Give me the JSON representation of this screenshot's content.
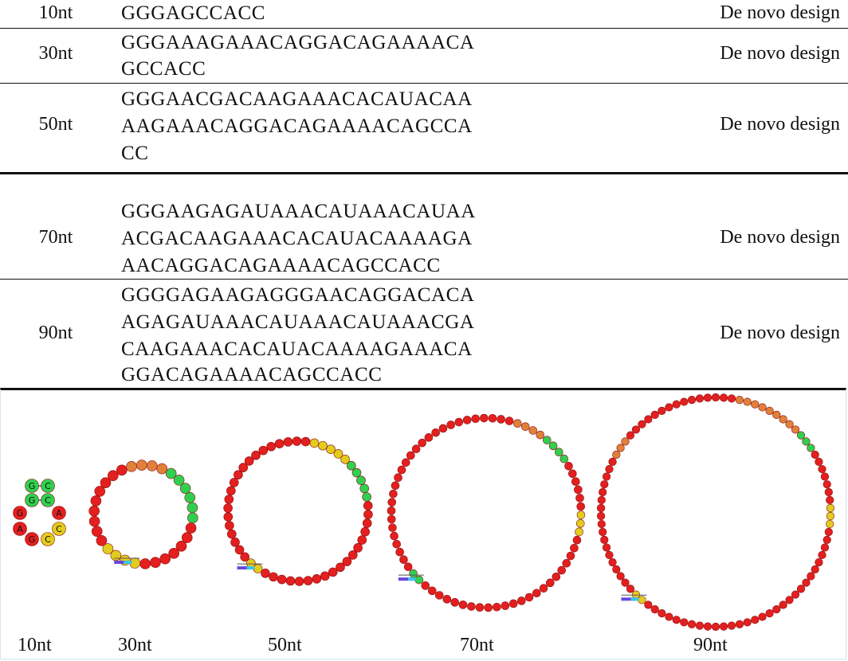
{
  "table": {
    "rows": [
      {
        "length": "10nt",
        "sequence_lines": [
          "GGGAGCCACC"
        ],
        "source": "De novo design"
      },
      {
        "length": "30nt",
        "sequence_lines": [
          "GGGAAAGAAACAGGACAGAAAACA",
          "GCCACC"
        ],
        "source": "De novo design"
      },
      {
        "length": "50nt",
        "sequence_lines": [
          "GGGAACGACAAGAAACACAUACAA",
          "AAGAAACAGGACAGAAAACAGCCA",
          "CC"
        ],
        "source": "De novo design"
      },
      {
        "length": "70nt",
        "sequence_lines": [
          "GGGAAGAGAUAAACAUAAACAUAA",
          "ACGACAAGAAACACAUACAAAAGA",
          "AACAGGACAGAAAACAGCCACC"
        ],
        "source": "De novo design"
      },
      {
        "length": "90nt",
        "sequence_lines": [
          "GGGGAGAAGAGGGAACAGGACACA",
          "AGAGAUAAACAUAAACAUAAACGA",
          "CAAGAAACACAUACAAAAGAAACA",
          "GGACAGAAAACAGCCACC"
        ],
        "source": "De novo design"
      }
    ]
  },
  "figure": {
    "captions": [
      "10nt",
      "30nt",
      "50nt",
      "70nt",
      "90nt"
    ],
    "hairpin_10nt": {
      "stem_pairs": [
        [
          "G",
          "C"
        ],
        [
          "G",
          "C"
        ]
      ],
      "loop_left": [
        "G",
        "A"
      ],
      "loop_right": [
        "A",
        "C"
      ],
      "loop_bottom": [
        "G",
        "C"
      ]
    },
    "rings": [
      {
        "name": "30nt",
        "n": 30
      },
      {
        "name": "50nt",
        "n": 50
      },
      {
        "name": "70nt",
        "n": 70
      },
      {
        "name": "90nt",
        "n": 90
      }
    ],
    "colors": {
      "red": "#e41f1f",
      "green": "#2fd04f",
      "yellow": "#e2cc1e",
      "orange": "#e0803a"
    }
  }
}
